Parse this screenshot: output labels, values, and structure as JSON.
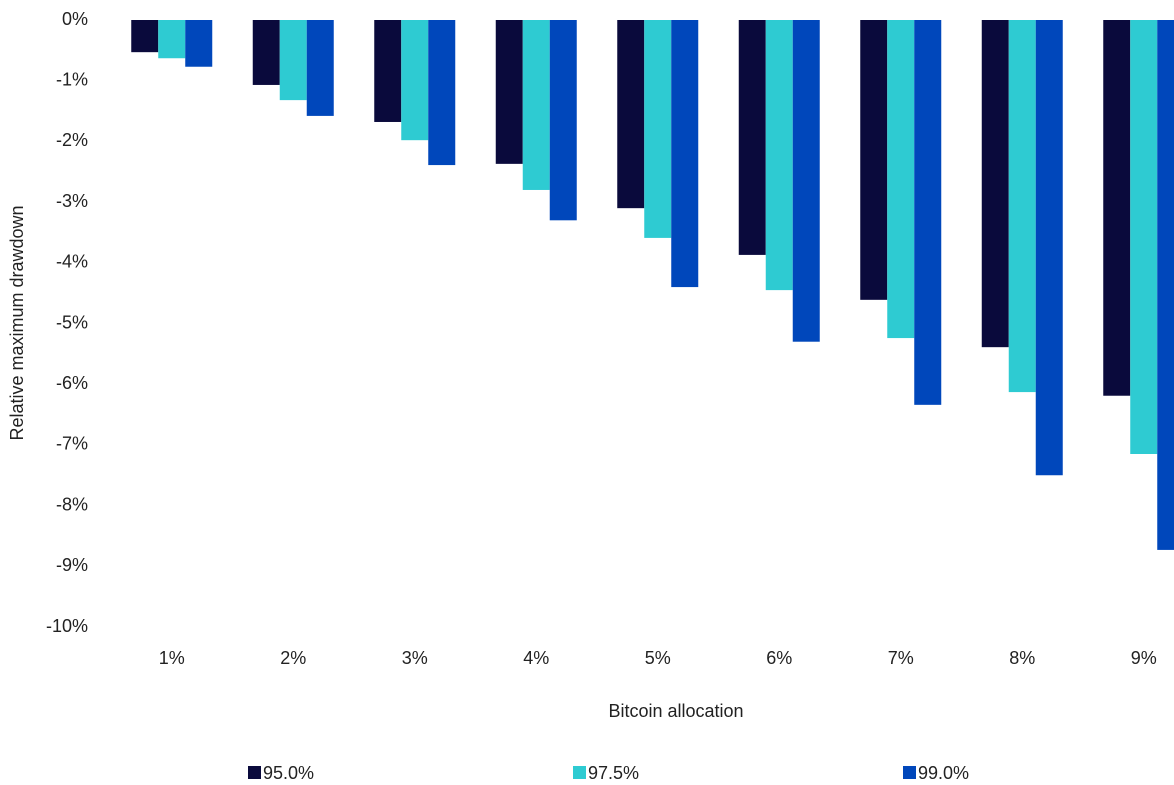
{
  "chart_data": {
    "type": "bar",
    "y_label": "Relative maximum drawdown",
    "x_label": "Bitcoin allocation",
    "categories": [
      "1%",
      "2%",
      "3%",
      "4%",
      "5%",
      "6%",
      "7%",
      "8%",
      "9%"
    ],
    "series": [
      {
        "name": "95.0%",
        "color": "#0a0a3c",
        "values": [
          -0.53,
          -1.07,
          -1.68,
          -2.37,
          -3.1,
          -3.87,
          -4.61,
          -5.39,
          -6.19
        ]
      },
      {
        "name": "97.5%",
        "color": "#2ecbd2",
        "values": [
          -0.63,
          -1.32,
          -1.98,
          -2.8,
          -3.59,
          -4.45,
          -5.24,
          -6.13,
          -7.15
        ]
      },
      {
        "name": "99.0%",
        "color": "#0047bb",
        "values": [
          -0.77,
          -1.58,
          -2.39,
          -3.3,
          -4.4,
          -5.3,
          -6.34,
          -7.5,
          -8.73
        ]
      }
    ],
    "ylim": [
      -10,
      0
    ],
    "yticks": [
      {
        "value": 0,
        "label": "0%"
      },
      {
        "value": -1,
        "label": "-1%"
      },
      {
        "value": -2,
        "label": "-2%"
      },
      {
        "value": -3,
        "label": "-3%"
      },
      {
        "value": -4,
        "label": "-4%"
      },
      {
        "value": -5,
        "label": "-5%"
      },
      {
        "value": -6,
        "label": "-6%"
      },
      {
        "value": -7,
        "label": "-7%"
      },
      {
        "value": -8,
        "label": "-8%"
      },
      {
        "value": -9,
        "label": "-9%"
      },
      {
        "value": -10,
        "label": "-10%"
      }
    ],
    "grid": false,
    "legend": "bottom"
  }
}
